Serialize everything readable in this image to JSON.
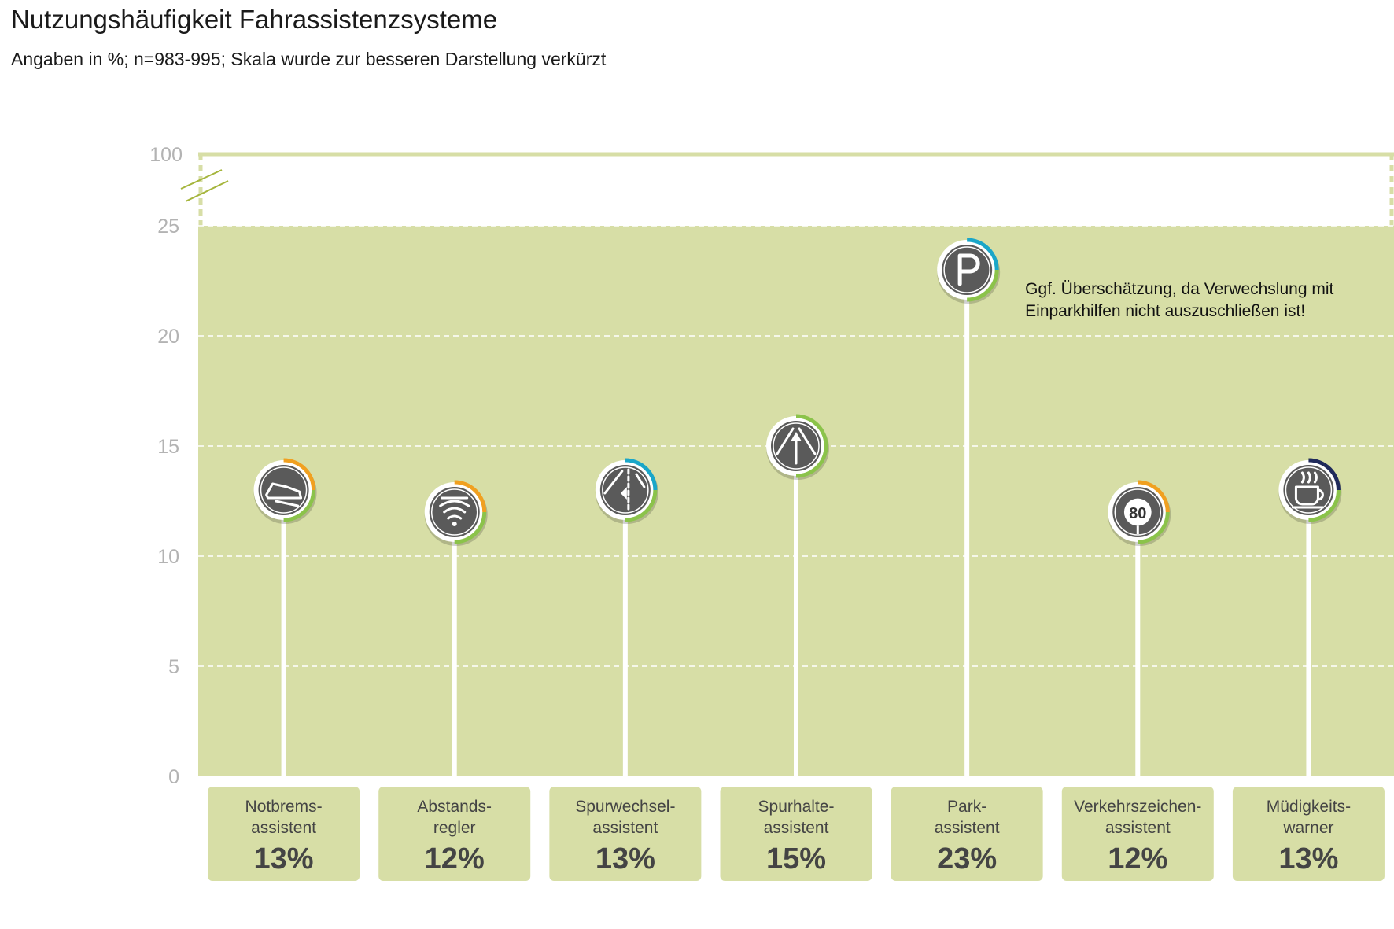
{
  "chart_data": {
    "type": "lollipop",
    "title": "Nutzungshäufigkeit Fahrassistenzsysteme",
    "subtitle": "Angaben in %; n=983-995; Skala wurde zur besseren Darstellung verkürzt",
    "ylim": [
      0,
      25
    ],
    "yticks": [
      0,
      5,
      10,
      15,
      20,
      25
    ],
    "ybreak_label": "100",
    "grid": true,
    "categories": [
      {
        "line1": "Notbrems-",
        "line2": "assistent",
        "value": 13,
        "value_label": "13%",
        "icon": "shoe-brake-icon",
        "ring": "#f0a020"
      },
      {
        "line1": "Abstands-",
        "line2": "regler",
        "value": 12,
        "value_label": "12%",
        "icon": "radar-waves-icon",
        "ring": "#f0a020"
      },
      {
        "line1": "Spurwechsel-",
        "line2": "assistent",
        "value": 13,
        "value_label": "13%",
        "icon": "lane-change-icon",
        "ring": "#1aa6c8"
      },
      {
        "line1": "Spurhalte-",
        "line2": "assistent",
        "value": 15,
        "value_label": "15%",
        "icon": "lane-keep-icon",
        "ring": "#8bc34a"
      },
      {
        "line1": "Park-",
        "line2": "assistent",
        "value": 23,
        "value_label": "23%",
        "icon": "parking-icon",
        "ring": "#1aa6c8"
      },
      {
        "line1": "Verkehrszeichen-",
        "line2": "assistent",
        "value": 12,
        "value_label": "12%",
        "icon": "speed-sign-80-icon",
        "ring": "#f0a020",
        "icon_text": "80"
      },
      {
        "line1": "Müdigkeits-",
        "line2": "warner",
        "value": 13,
        "value_label": "13%",
        "icon": "coffee-cup-icon",
        "ring": "#1f2a5a"
      }
    ],
    "annotation": {
      "line1": "Ggf. Überschätzung, da Verwechslung mit",
      "line2": "Einparkhilfen nicht auszuschließen ist!"
    },
    "colors": {
      "plot_bg": "#d7dea6",
      "label_box": "#d7dea6",
      "stem": "#ffffff",
      "icon_fill": "#5a5a5a",
      "break_line": "#a5b53c"
    }
  }
}
